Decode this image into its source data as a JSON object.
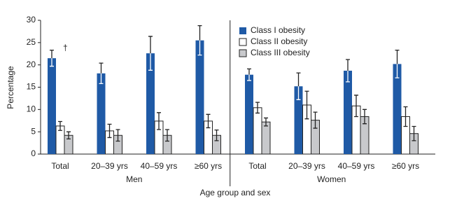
{
  "chart_data": {
    "type": "bar",
    "y_label": "Percentage",
    "x_label": "Age group and sex",
    "groups": [
      "Men",
      "Women"
    ],
    "annotation": "†",
    "categories": [
      "Total",
      "20–39 yrs",
      "40–59 yrs",
      "≥60 yrs",
      "Total",
      "20–39 yrs",
      "40–59 yrs",
      "≥60 yrs"
    ],
    "series": [
      {
        "name": "Class I obesity",
        "color": "#1f5aa6",
        "values": [
          21.5,
          18.1,
          22.6,
          25.5,
          17.8,
          15.2,
          18.7,
          20.2
        ],
        "errors": [
          1.8,
          2.3,
          3.8,
          3.3,
          1.3,
          3.0,
          2.5,
          3.1
        ]
      },
      {
        "name": "Class II obesity",
        "color": "#ffffff",
        "values": [
          6.3,
          5.2,
          7.4,
          7.4,
          10.4,
          11.0,
          10.8,
          8.4
        ],
        "errors": [
          1.0,
          1.5,
          1.9,
          1.5,
          1.2,
          3.1,
          2.4,
          2.2
        ]
      },
      {
        "name": "Class III obesity",
        "color": "#c8c9cc",
        "values": [
          4.2,
          4.2,
          4.2,
          4.2,
          7.2,
          7.6,
          8.4,
          4.6
        ],
        "errors": [
          0.8,
          1.3,
          1.3,
          1.2,
          0.9,
          1.8,
          1.6,
          1.6
        ]
      }
    ],
    "ylim": [
      0,
      30
    ],
    "yticks": [
      0,
      5,
      10,
      15,
      20,
      25,
      30
    ]
  }
}
